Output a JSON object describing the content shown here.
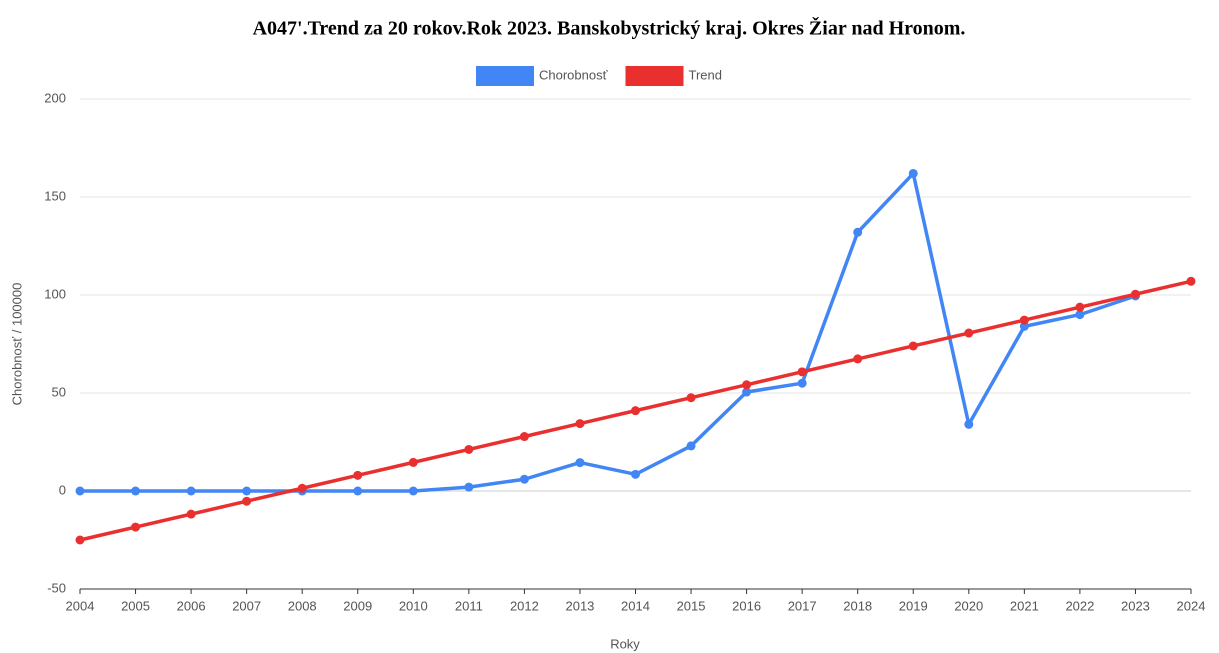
{
  "chart_data": {
    "type": "line",
    "title": "A047'.Trend za 20 rokov.Rok 2023. Banskobystrický kraj. Okres Žiar nad Hronom.",
    "x_label": "Roky",
    "y_label": "Chorobnosť / 100000",
    "x": [
      2004,
      2005,
      2006,
      2007,
      2008,
      2009,
      2010,
      2011,
      2012,
      2013,
      2014,
      2015,
      2016,
      2017,
      2018,
      2019,
      2020,
      2021,
      2022,
      2023,
      2024
    ],
    "series": [
      {
        "name": "Chorobnosť",
        "color": "#4285f4",
        "values": [
          0,
          0,
          0,
          0,
          0,
          0,
          0,
          2,
          6,
          14.5,
          8.5,
          23,
          50.5,
          55,
          132,
          162,
          34,
          84,
          90,
          99.5,
          null
        ]
      },
      {
        "name": "Trend",
        "color": "#ea2f2f",
        "values": [
          -25,
          -18.4,
          -11.8,
          -5.2,
          1.4,
          8,
          14.6,
          21.2,
          27.8,
          34.4,
          41,
          47.6,
          54.2,
          60.8,
          67.4,
          74,
          80.6,
          87.2,
          93.8,
          100.4,
          107
        ]
      }
    ],
    "xlim": [
      2004,
      2024
    ],
    "xticks": [
      2004,
      2005,
      2006,
      2007,
      2008,
      2009,
      2010,
      2011,
      2012,
      2013,
      2014,
      2015,
      2016,
      2017,
      2018,
      2019,
      2020,
      2021,
      2022,
      2023,
      2024
    ],
    "ylim": [
      -50,
      200
    ],
    "yticks": [
      -50,
      0,
      50,
      100,
      150,
      200
    ],
    "grid": true,
    "legend": "top"
  }
}
